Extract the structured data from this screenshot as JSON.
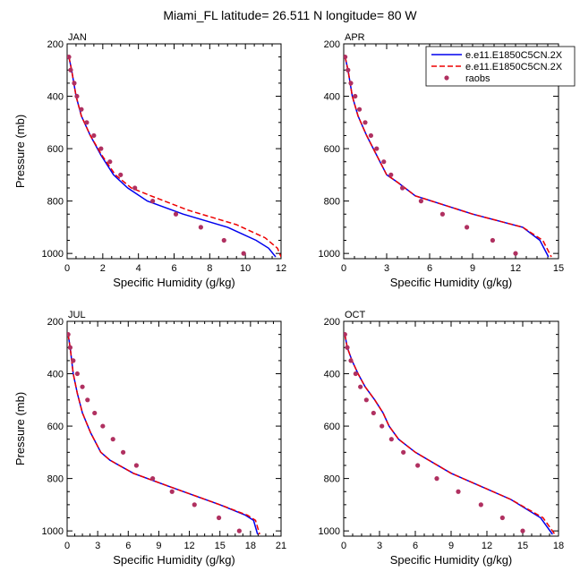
{
  "title": "Miami_FL  latitude= 26.511 N longitude= 80 W",
  "colors": {
    "model1": "#0000ee",
    "model2": "#ee0000",
    "obs": "#b03060"
  },
  "legend": {
    "entries": [
      {
        "label": "e.e11.E1850C5CN.2X",
        "style": "solid-line"
      },
      {
        "label": "e.e11.E1850C5CN.2X",
        "style": "dashed-line"
      },
      {
        "label": "raobs",
        "style": "marker"
      }
    ]
  },
  "chart_data": [
    {
      "type": "line",
      "panel": "JAN",
      "xlabel": "Specific Humidity (g/kg)",
      "ylabel": "Pressure (mb)",
      "xlim": [
        0,
        12
      ],
      "xticks": [
        0,
        2,
        4,
        6,
        8,
        10,
        12
      ],
      "ylim": [
        1020,
        200
      ],
      "yticks": [
        200,
        400,
        600,
        800,
        1000
      ],
      "series": [
        {
          "name": "e.e11.E1850C5CN.2X",
          "style": "solid",
          "x": [
            0.1,
            0.25,
            0.5,
            0.8,
            1.3,
            1.9,
            2.6,
            3.4,
            4.5,
            6.5,
            9.0,
            10.6,
            11.3,
            11.7
          ],
          "y": [
            250,
            300,
            400,
            475,
            550,
            625,
            700,
            750,
            800,
            850,
            900,
            950,
            980,
            1013
          ]
        },
        {
          "name": "e.e11.E1850C5CN.2X",
          "style": "dashed",
          "x": [
            0.1,
            0.25,
            0.5,
            0.8,
            1.3,
            1.95,
            2.7,
            3.6,
            4.7,
            6.8,
            9.5,
            11.1,
            11.8,
            12.0
          ],
          "y": [
            250,
            300,
            400,
            475,
            550,
            625,
            700,
            750,
            780,
            835,
            890,
            940,
            980,
            1013
          ]
        },
        {
          "name": "raobs",
          "style": "markers",
          "x": [
            0.1,
            0.2,
            0.4,
            0.55,
            0.8,
            1.1,
            1.5,
            1.9,
            2.4,
            3.0,
            3.8,
            4.8,
            6.1,
            7.5,
            8.8,
            9.9
          ],
          "y": [
            250,
            300,
            350,
            400,
            450,
            500,
            550,
            600,
            650,
            700,
            750,
            800,
            850,
            900,
            950,
            1000
          ]
        }
      ]
    },
    {
      "type": "line",
      "panel": "APR",
      "xlabel": "Specific Humidity (g/kg)",
      "ylabel": "",
      "xlim": [
        0,
        15
      ],
      "xticks": [
        0,
        3,
        6,
        9,
        12,
        15
      ],
      "ylim": [
        1020,
        200
      ],
      "yticks": [
        200,
        400,
        600,
        800,
        1000
      ],
      "series": [
        {
          "name": "e.e11.E1850C5CN.2X",
          "style": "solid",
          "x": [
            0.1,
            0.3,
            0.6,
            1.0,
            1.6,
            2.3,
            3.0,
            3.8,
            5.0,
            9.0,
            12.5,
            13.7,
            14.3
          ],
          "y": [
            250,
            300,
            400,
            475,
            550,
            625,
            700,
            730,
            780,
            850,
            900,
            950,
            1013
          ]
        },
        {
          "name": "e.e11.E1850C5CN.2X",
          "style": "dashed",
          "x": [
            0.1,
            0.3,
            0.6,
            1.0,
            1.6,
            2.3,
            3.0,
            3.8,
            5.0,
            9.0,
            12.5,
            13.9,
            14.5
          ],
          "y": [
            250,
            300,
            400,
            475,
            550,
            625,
            700,
            730,
            780,
            850,
            900,
            950,
            1013
          ]
        },
        {
          "name": "raobs",
          "style": "markers",
          "x": [
            0.1,
            0.3,
            0.5,
            0.8,
            1.1,
            1.5,
            1.9,
            2.3,
            2.8,
            3.3,
            4.1,
            5.4,
            6.9,
            8.6,
            10.4,
            12.0
          ],
          "y": [
            250,
            300,
            350,
            400,
            450,
            500,
            550,
            600,
            650,
            700,
            750,
            800,
            850,
            900,
            950,
            1000
          ]
        }
      ]
    },
    {
      "type": "line",
      "panel": "JUL",
      "xlabel": "Specific Humidity (g/kg)",
      "ylabel": "Pressure (mb)",
      "xlim": [
        0,
        21
      ],
      "xticks": [
        0,
        3,
        6,
        9,
        12,
        15,
        18,
        21
      ],
      "ylim": [
        1020,
        200
      ],
      "yticks": [
        200,
        400,
        600,
        800,
        1000
      ],
      "series": [
        {
          "name": "e.e11.E1850C5CN.2X",
          "style": "solid",
          "x": [
            0.1,
            0.3,
            0.6,
            1.0,
            1.5,
            2.3,
            3.3,
            4.2,
            6.5,
            10.0,
            15.0,
            17.5,
            18.3,
            18.7
          ],
          "y": [
            250,
            300,
            400,
            475,
            550,
            625,
            700,
            730,
            780,
            830,
            900,
            940,
            960,
            1013
          ]
        },
        {
          "name": "e.e11.E1850C5CN.2X",
          "style": "dashed",
          "x": [
            0.1,
            0.3,
            0.6,
            1.0,
            1.5,
            2.3,
            3.3,
            4.2,
            6.5,
            10.0,
            15.0,
            17.7,
            18.5,
            18.9
          ],
          "y": [
            250,
            300,
            400,
            475,
            550,
            625,
            700,
            730,
            780,
            830,
            900,
            940,
            960,
            1013
          ]
        },
        {
          "name": "raobs",
          "style": "markers",
          "x": [
            0.1,
            0.3,
            0.6,
            1.0,
            1.5,
            2.0,
            2.7,
            3.5,
            4.5,
            5.5,
            6.8,
            8.4,
            10.3,
            12.5,
            14.9,
            16.9
          ],
          "y": [
            250,
            300,
            350,
            400,
            450,
            500,
            550,
            600,
            650,
            700,
            750,
            800,
            850,
            900,
            950,
            1000
          ]
        }
      ]
    },
    {
      "type": "line",
      "panel": "OCT",
      "xlabel": "Specific Humidity (g/kg)",
      "ylabel": "",
      "xlim": [
        0,
        18
      ],
      "xticks": [
        0,
        3,
        6,
        9,
        12,
        15,
        18
      ],
      "ylim": [
        1020,
        200
      ],
      "yticks": [
        200,
        400,
        600,
        800,
        1000
      ],
      "series": [
        {
          "name": "e.e11.E1850C5CN.2X",
          "style": "solid",
          "x": [
            0.1,
            0.3,
            0.7,
            1.2,
            1.8,
            2.6,
            3.3,
            3.8,
            4.6,
            6.0,
            9.0,
            14.0,
            16.5,
            17.5
          ],
          "y": [
            250,
            300,
            350,
            400,
            450,
            500,
            550,
            600,
            650,
            700,
            780,
            880,
            950,
            1013
          ]
        },
        {
          "name": "e.e11.E1850C5CN.2X",
          "style": "dashed",
          "x": [
            0.1,
            0.3,
            0.7,
            1.2,
            1.8,
            2.6,
            3.3,
            3.8,
            4.6,
            6.0,
            9.0,
            14.0,
            16.7,
            17.7
          ],
          "y": [
            250,
            300,
            350,
            400,
            450,
            500,
            550,
            600,
            650,
            700,
            780,
            880,
            950,
            1013
          ]
        },
        {
          "name": "raobs",
          "style": "markers",
          "x": [
            0.1,
            0.3,
            0.6,
            1.0,
            1.4,
            1.9,
            2.5,
            3.2,
            4.0,
            5.0,
            6.2,
            7.8,
            9.6,
            11.5,
            13.3,
            15.0
          ],
          "y": [
            250,
            300,
            350,
            400,
            450,
            500,
            550,
            600,
            650,
            700,
            750,
            800,
            850,
            900,
            950,
            1000
          ]
        }
      ]
    }
  ]
}
